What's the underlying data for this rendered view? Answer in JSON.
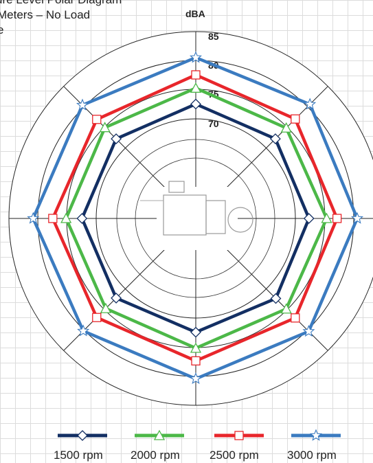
{
  "chart_data": {
    "type": "radar",
    "title_lines": [
      "ure Level Polar Diagram",
      "Meters – No Load",
      "e"
    ],
    "unit_label": "dBA",
    "ring_labels": [
      "85",
      "80",
      "75",
      "70"
    ],
    "r_scale": {
      "ring_values": [
        70,
        75,
        80,
        85
      ],
      "note": "radial dBA scale"
    },
    "directions": 8,
    "grid": true,
    "legend_position": "bottom",
    "series": [
      {
        "name": "1500 rpm",
        "color": "#132f63",
        "marker": "diamond",
        "values": [
          72.5,
          72.2,
          72.3,
          72.3,
          72.4,
          72.2,
          72.4,
          72.2
        ]
      },
      {
        "name": "2000 rpm",
        "color": "#4cb848",
        "marker": "triangle",
        "values": [
          75.2,
          74.8,
          75.3,
          74.8,
          75.1,
          74.7,
          75.1,
          74.9
        ]
      },
      {
        "name": "2500 rpm",
        "color": "#e8262b",
        "marker": "square",
        "values": [
          77.5,
          77.0,
          77.1,
          77.0,
          77.3,
          76.9,
          77.4,
          76.9
        ]
      },
      {
        "name": "3000 rpm",
        "color": "#3b7bc0",
        "marker": "star",
        "values": [
          80.5,
          80.6,
          80.6,
          80.3,
          80.4,
          80.2,
          80.8,
          80.4
        ]
      }
    ]
  }
}
